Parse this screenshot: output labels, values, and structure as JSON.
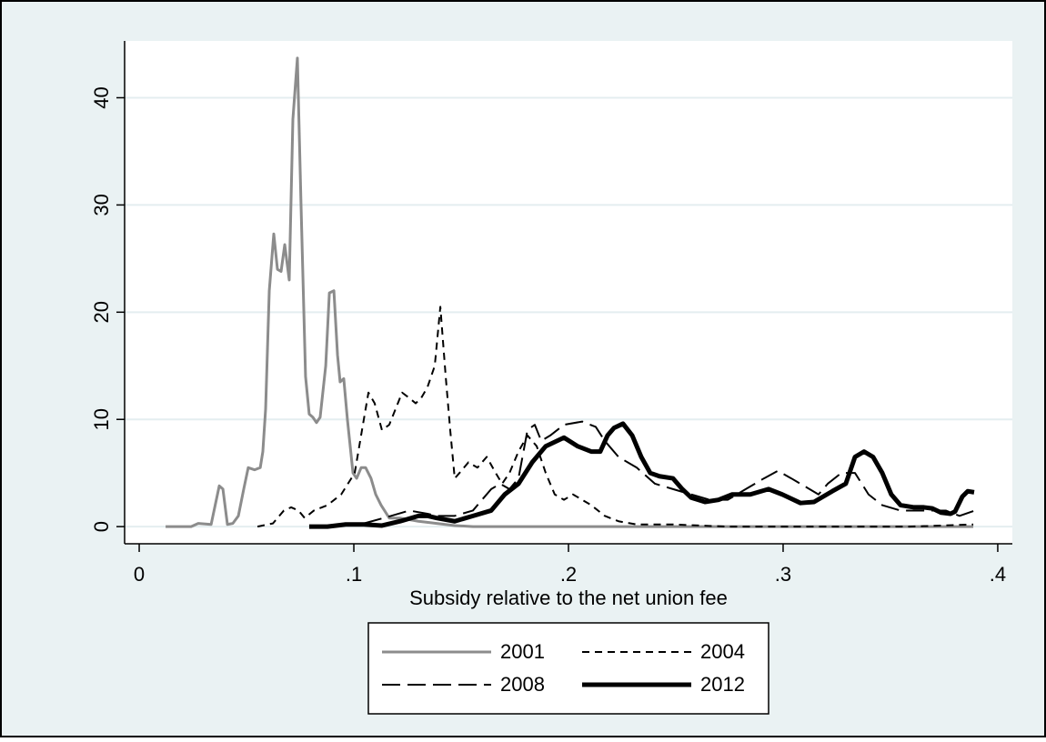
{
  "chart_data": {
    "type": "line",
    "x_label": "Subsidy relative to the net union fee",
    "xlim": [
      -0.0068,
      0.4068
    ],
    "ylim": [
      -1.6,
      45.3
    ],
    "xticks": [
      0,
      {
        "value": 0.1,
        "label": ".1"
      },
      {
        "value": 0.2,
        "label": ".2"
      },
      {
        "value": 0.3,
        "label": ".3"
      },
      {
        "value": 0.4,
        "label": ".4"
      }
    ],
    "yticks": [
      0,
      10,
      20,
      30,
      40
    ],
    "grid": true,
    "legend": "bottom",
    "series": [
      {
        "name": "2001",
        "color": "#8c8c8c",
        "style": "solid",
        "x": [
          0.0123,
          0.0242,
          0.0275,
          0.0335,
          0.0373,
          0.039,
          0.0411,
          0.0436,
          0.0462,
          0.0487,
          0.0508,
          0.0538,
          0.0564,
          0.0576,
          0.0589,
          0.0606,
          0.0627,
          0.0644,
          0.0661,
          0.0678,
          0.0699,
          0.0716,
          0.0737,
          0.0754,
          0.0775,
          0.0792,
          0.0809,
          0.0826,
          0.0843,
          0.0869,
          0.0886,
          0.0907,
          0.0924,
          0.0936,
          0.0953,
          0.097,
          0.0996,
          0.1013,
          0.1034,
          0.1055,
          0.108,
          0.1102,
          0.1127,
          0.1165,
          0.1216,
          0.1301,
          0.1386,
          0.147,
          0.1555,
          0.1894,
          0.2742,
          0.3886
        ],
        "values": [
          0,
          0,
          0.3,
          0.2,
          3.8,
          3.5,
          0.2,
          0.3,
          1,
          3.5,
          5.5,
          5.3,
          5.5,
          7,
          11,
          22,
          27.3,
          24,
          23.8,
          26.3,
          23,
          38,
          43.7,
          30,
          14,
          10.5,
          10.2,
          9.7,
          10.2,
          15,
          21.8,
          22,
          16,
          13.5,
          13.8,
          10,
          5,
          4.5,
          5.5,
          5.5,
          4.5,
          3,
          2,
          0.8,
          0.8,
          0.5,
          0.3,
          0.1,
          0,
          0,
          0,
          0
        ]
      },
      {
        "name": "2004",
        "color": "#000000",
        "style": "dash",
        "x": [
          0.0551,
          0.0623,
          0.0674,
          0.0708,
          0.0742,
          0.0771,
          0.0814,
          0.0877,
          0.0941,
          0.1004,
          0.1038,
          0.1068,
          0.1097,
          0.1131,
          0.1165,
          0.1195,
          0.1225,
          0.1258,
          0.1288,
          0.1314,
          0.1343,
          0.1377,
          0.1403,
          0.1428,
          0.1449,
          0.147,
          0.1492,
          0.1534,
          0.1576,
          0.1619,
          0.1661,
          0.1691,
          0.1725,
          0.1767,
          0.1809,
          0.1852,
          0.1894,
          0.1936,
          0.1979,
          0.2021,
          0.2064,
          0.2106,
          0.2169,
          0.2233,
          0.2318,
          0.2487,
          0.2742,
          0.3165,
          0.3589,
          0.3886
        ],
        "values": [
          0,
          0.3,
          1.5,
          1.8,
          1.5,
          0.8,
          1.5,
          2,
          3,
          5,
          9,
          12.5,
          11.5,
          9,
          9.5,
          11,
          12.5,
          12,
          11.5,
          12,
          13,
          15,
          20.5,
          14,
          9,
          4.5,
          5,
          6,
          5.5,
          6.5,
          5,
          4,
          5,
          7,
          8.5,
          7.5,
          5,
          3,
          2.5,
          3,
          2.5,
          2,
          1,
          0.5,
          0.2,
          0.2,
          0,
          0,
          0,
          0.2
        ]
      },
      {
        "name": "2008",
        "color": "#000000",
        "style": "longdash",
        "x": [
          0.1047,
          0.1174,
          0.1258,
          0.1343,
          0.1386,
          0.147,
          0.1555,
          0.1597,
          0.164,
          0.1682,
          0.1725,
          0.1767,
          0.1809,
          0.1843,
          0.1873,
          0.1915,
          0.1979,
          0.2064,
          0.2127,
          0.2169,
          0.2233,
          0.2318,
          0.2403,
          0.2487,
          0.2572,
          0.2657,
          0.2742,
          0.2826,
          0.2911,
          0.2975,
          0.3038,
          0.3123,
          0.3165,
          0.3208,
          0.3271,
          0.3335,
          0.3398,
          0.3462,
          0.3547,
          0.3631,
          0.3758,
          0.3822,
          0.3894
        ],
        "values": [
          0.3,
          1,
          1.5,
          1.2,
          1,
          1,
          1.5,
          2.5,
          3.5,
          4,
          3.5,
          4.5,
          9,
          9.5,
          8,
          8.5,
          9.5,
          9.8,
          9.3,
          8,
          6.5,
          5.5,
          4,
          3.5,
          3,
          2.5,
          2.5,
          3.5,
          4.5,
          5.2,
          4.5,
          3.5,
          3,
          4,
          5,
          5,
          3,
          2,
          1.5,
          1.5,
          1.5,
          1,
          1.5
        ]
      },
      {
        "name": "2012",
        "color": "#000000",
        "style": "bold",
        "x": [
          0.0792,
          0.0877,
          0.0962,
          0.1047,
          0.1131,
          0.1216,
          0.1301,
          0.1343,
          0.1386,
          0.147,
          0.1555,
          0.164,
          0.1703,
          0.1767,
          0.1831,
          0.1894,
          0.1979,
          0.2042,
          0.2106,
          0.2148,
          0.2182,
          0.2212,
          0.2254,
          0.2297,
          0.2339,
          0.2381,
          0.2424,
          0.2487,
          0.253,
          0.2572,
          0.2636,
          0.2699,
          0.2763,
          0.2847,
          0.2932,
          0.2996,
          0.3081,
          0.3144,
          0.3229,
          0.3292,
          0.3335,
          0.3377,
          0.3419,
          0.3462,
          0.3504,
          0.3547,
          0.361,
          0.3653,
          0.3695,
          0.3737,
          0.378,
          0.3801,
          0.3835,
          0.386,
          0.389
        ],
        "values": [
          0,
          0,
          0.2,
          0.2,
          0.1,
          0.5,
          1,
          1,
          0.8,
          0.5,
          1,
          1.5,
          3,
          4,
          6,
          7.5,
          8.3,
          7.5,
          7,
          7,
          8.5,
          9.2,
          9.6,
          8.5,
          6.5,
          5,
          4.7,
          4.5,
          3.5,
          2.7,
          2.3,
          2.5,
          3,
          3,
          3.5,
          3,
          2.2,
          2.3,
          3.3,
          4,
          6.5,
          7,
          6.5,
          5,
          3,
          2,
          1.8,
          1.8,
          1.7,
          1.3,
          1.2,
          1.4,
          2.8,
          3.3,
          3.2
        ]
      }
    ]
  }
}
